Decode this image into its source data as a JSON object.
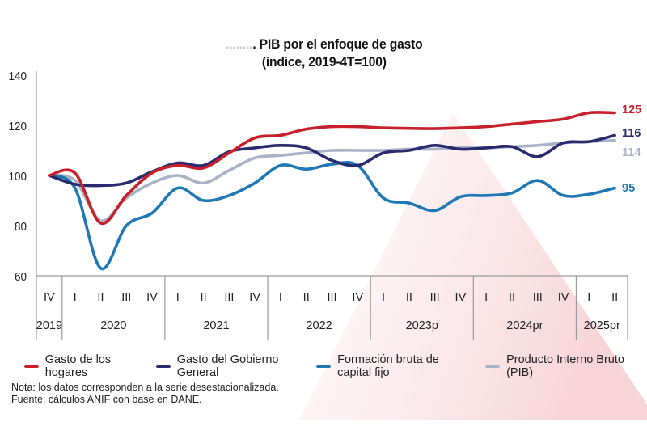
{
  "title": {
    "prefix": "........",
    "line1": ". PIB por el enfoque de gasto",
    "line2": "(índice, 2019-4T=100)"
  },
  "notes": {
    "nota": "Nota: los datos corresponden a la serie desestacionalizada.",
    "fuente": "Fuente: cálculos ANIF con base en DANE."
  },
  "chart_data": {
    "type": "line",
    "title": "PIB por el enfoque de gasto (índice, 2019-4T=100)",
    "xlabel": "",
    "ylabel": "",
    "ylim": [
      60,
      140
    ],
    "yticks": [
      60,
      80,
      100,
      120,
      140
    ],
    "grid": false,
    "legend_position": "bottom",
    "x": [
      "2019-IV",
      "2020-I",
      "2020-II",
      "2020-III",
      "2020-IV",
      "2021-I",
      "2021-II",
      "2021-III",
      "2021-IV",
      "2022-I",
      "2022-II",
      "2022-III",
      "2022-IV",
      "2023p-I",
      "2023p-II",
      "2023p-III",
      "2023p-IV",
      "2024pr-I",
      "2024pr-II",
      "2024pr-III",
      "2024pr-IV",
      "2025pr-I",
      "2025pr-II"
    ],
    "quarter_labels": [
      "IV",
      "I",
      "II",
      "III",
      "IV",
      "I",
      "II",
      "III",
      "IV",
      "I",
      "II",
      "III",
      "IV",
      "I",
      "II",
      "III",
      "IV",
      "I",
      "II",
      "III",
      "IV",
      "I",
      "II"
    ],
    "year_groups": [
      {
        "label": "2019",
        "quarters": 1
      },
      {
        "label": "2020",
        "quarters": 4
      },
      {
        "label": "2021",
        "quarters": 4
      },
      {
        "label": "2022",
        "quarters": 4
      },
      {
        "label": "2023p",
        "quarters": 4
      },
      {
        "label": "2024pr",
        "quarters": 4
      },
      {
        "label": "2025pr",
        "quarters": 2
      }
    ],
    "series": [
      {
        "name": "Gasto de los hogares",
        "color": "#c8202a",
        "end_label": "125",
        "values": [
          100,
          101,
          81,
          92,
          101,
          104,
          103,
          109,
          115,
          116,
          118.5,
          119.5,
          119.5,
          119,
          118.8,
          118.7,
          119,
          119.5,
          120.5,
          121.5,
          122.5,
          125,
          125
        ]
      },
      {
        "name": "Gasto del Gobierno General",
        "color": "#2a2a6e",
        "end_label": "116",
        "values": [
          100,
          96.5,
          96,
          97,
          101.5,
          105,
          104,
          109.5,
          111,
          112,
          111,
          106,
          104,
          109,
          110,
          112,
          110.5,
          111,
          111.5,
          107.5,
          113,
          113.5,
          116
        ]
      },
      {
        "name": "Formación bruta de capital fijo",
        "color": "#1f78b4",
        "end_label": "95",
        "values": [
          100,
          95,
          63,
          80,
          85,
          95,
          90,
          92,
          97,
          104,
          102.5,
          104.5,
          104,
          91,
          89,
          86,
          91.5,
          92,
          93,
          98,
          92,
          92.5,
          95
        ]
      },
      {
        "name": "Producto Interno Bruto (PIB)",
        "color": "#a9b3c8",
        "end_label": "114",
        "values": [
          100,
          98,
          82,
          91,
          97,
          100,
          97,
          102,
          107,
          108,
          109,
          110,
          110,
          110,
          110.5,
          110.5,
          111,
          111,
          111.5,
          112,
          113,
          113.5,
          114
        ]
      }
    ]
  }
}
